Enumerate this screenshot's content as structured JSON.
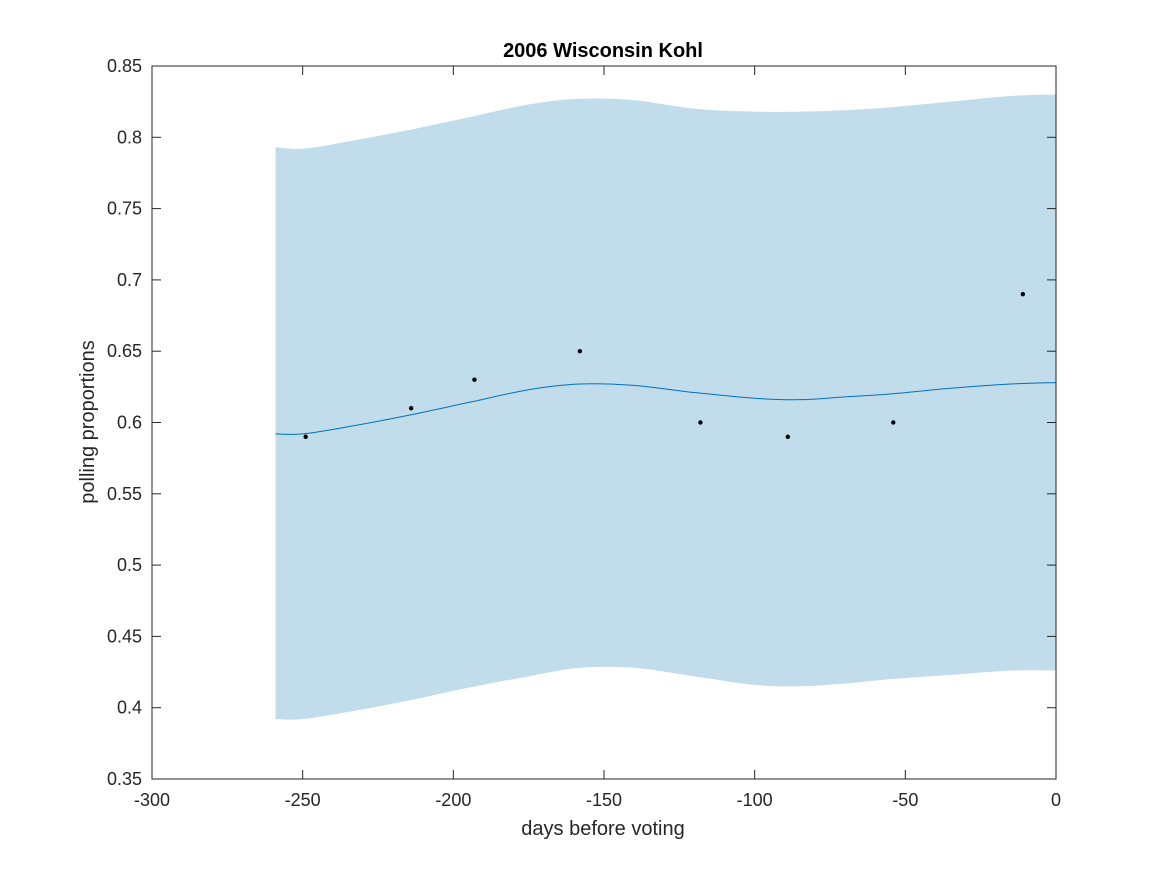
{
  "chart_data": {
    "type": "line",
    "title": "2006 Wisconsin Kohl",
    "xlabel": "days before voting",
    "ylabel": "polling proportions",
    "xlim": [
      -300,
      0
    ],
    "ylim": [
      0.35,
      0.85
    ],
    "x_ticks": [
      -300,
      -250,
      -200,
      -150,
      -100,
      -50,
      0
    ],
    "x_tick_labels": [
      "-300",
      "-250",
      "-200",
      "-150",
      "-100",
      "-50",
      "0"
    ],
    "y_ticks": [
      0.35,
      0.4,
      0.45,
      0.5,
      0.55,
      0.6,
      0.65,
      0.7,
      0.75,
      0.8,
      0.85
    ],
    "y_tick_labels": [
      "0.35",
      "0.4",
      "0.45",
      "0.5",
      "0.55",
      "0.6",
      "0.65",
      "0.7",
      "0.75",
      "0.8",
      "0.85"
    ],
    "grid": false,
    "colors": {
      "band": "#c1dcea",
      "line": "#0072bd",
      "points": "#000000"
    },
    "series": [
      {
        "type": "area",
        "x": [
          -259,
          -250,
          -235,
          -215,
          -195,
          -175,
          -158,
          -140,
          -120,
          -100,
          -85,
          -70,
          -55,
          -35,
          -15,
          0
        ],
        "lower": [
          0.392,
          0.392,
          0.397,
          0.405,
          0.414,
          0.422,
          0.428,
          0.428,
          0.422,
          0.416,
          0.415,
          0.417,
          0.42,
          0.423,
          0.426,
          0.426
        ],
        "upper": [
          0.793,
          0.792,
          0.797,
          0.805,
          0.814,
          0.823,
          0.827,
          0.826,
          0.82,
          0.818,
          0.818,
          0.819,
          0.821,
          0.825,
          0.829,
          0.83
        ]
      },
      {
        "type": "line",
        "x": [
          -259,
          -250,
          -235,
          -215,
          -195,
          -175,
          -158,
          -140,
          -120,
          -100,
          -85,
          -70,
          -55,
          -35,
          -15,
          0
        ],
        "y": [
          0.592,
          0.592,
          0.597,
          0.605,
          0.614,
          0.623,
          0.627,
          0.626,
          0.621,
          0.617,
          0.616,
          0.618,
          0.62,
          0.624,
          0.627,
          0.628
        ]
      },
      {
        "type": "scatter",
        "x": [
          -249,
          -214,
          -193,
          -158,
          -118,
          -89,
          -54,
          -11
        ],
        "y": [
          0.59,
          0.61,
          0.63,
          0.65,
          0.6,
          0.59,
          0.6,
          0.69
        ]
      }
    ]
  }
}
